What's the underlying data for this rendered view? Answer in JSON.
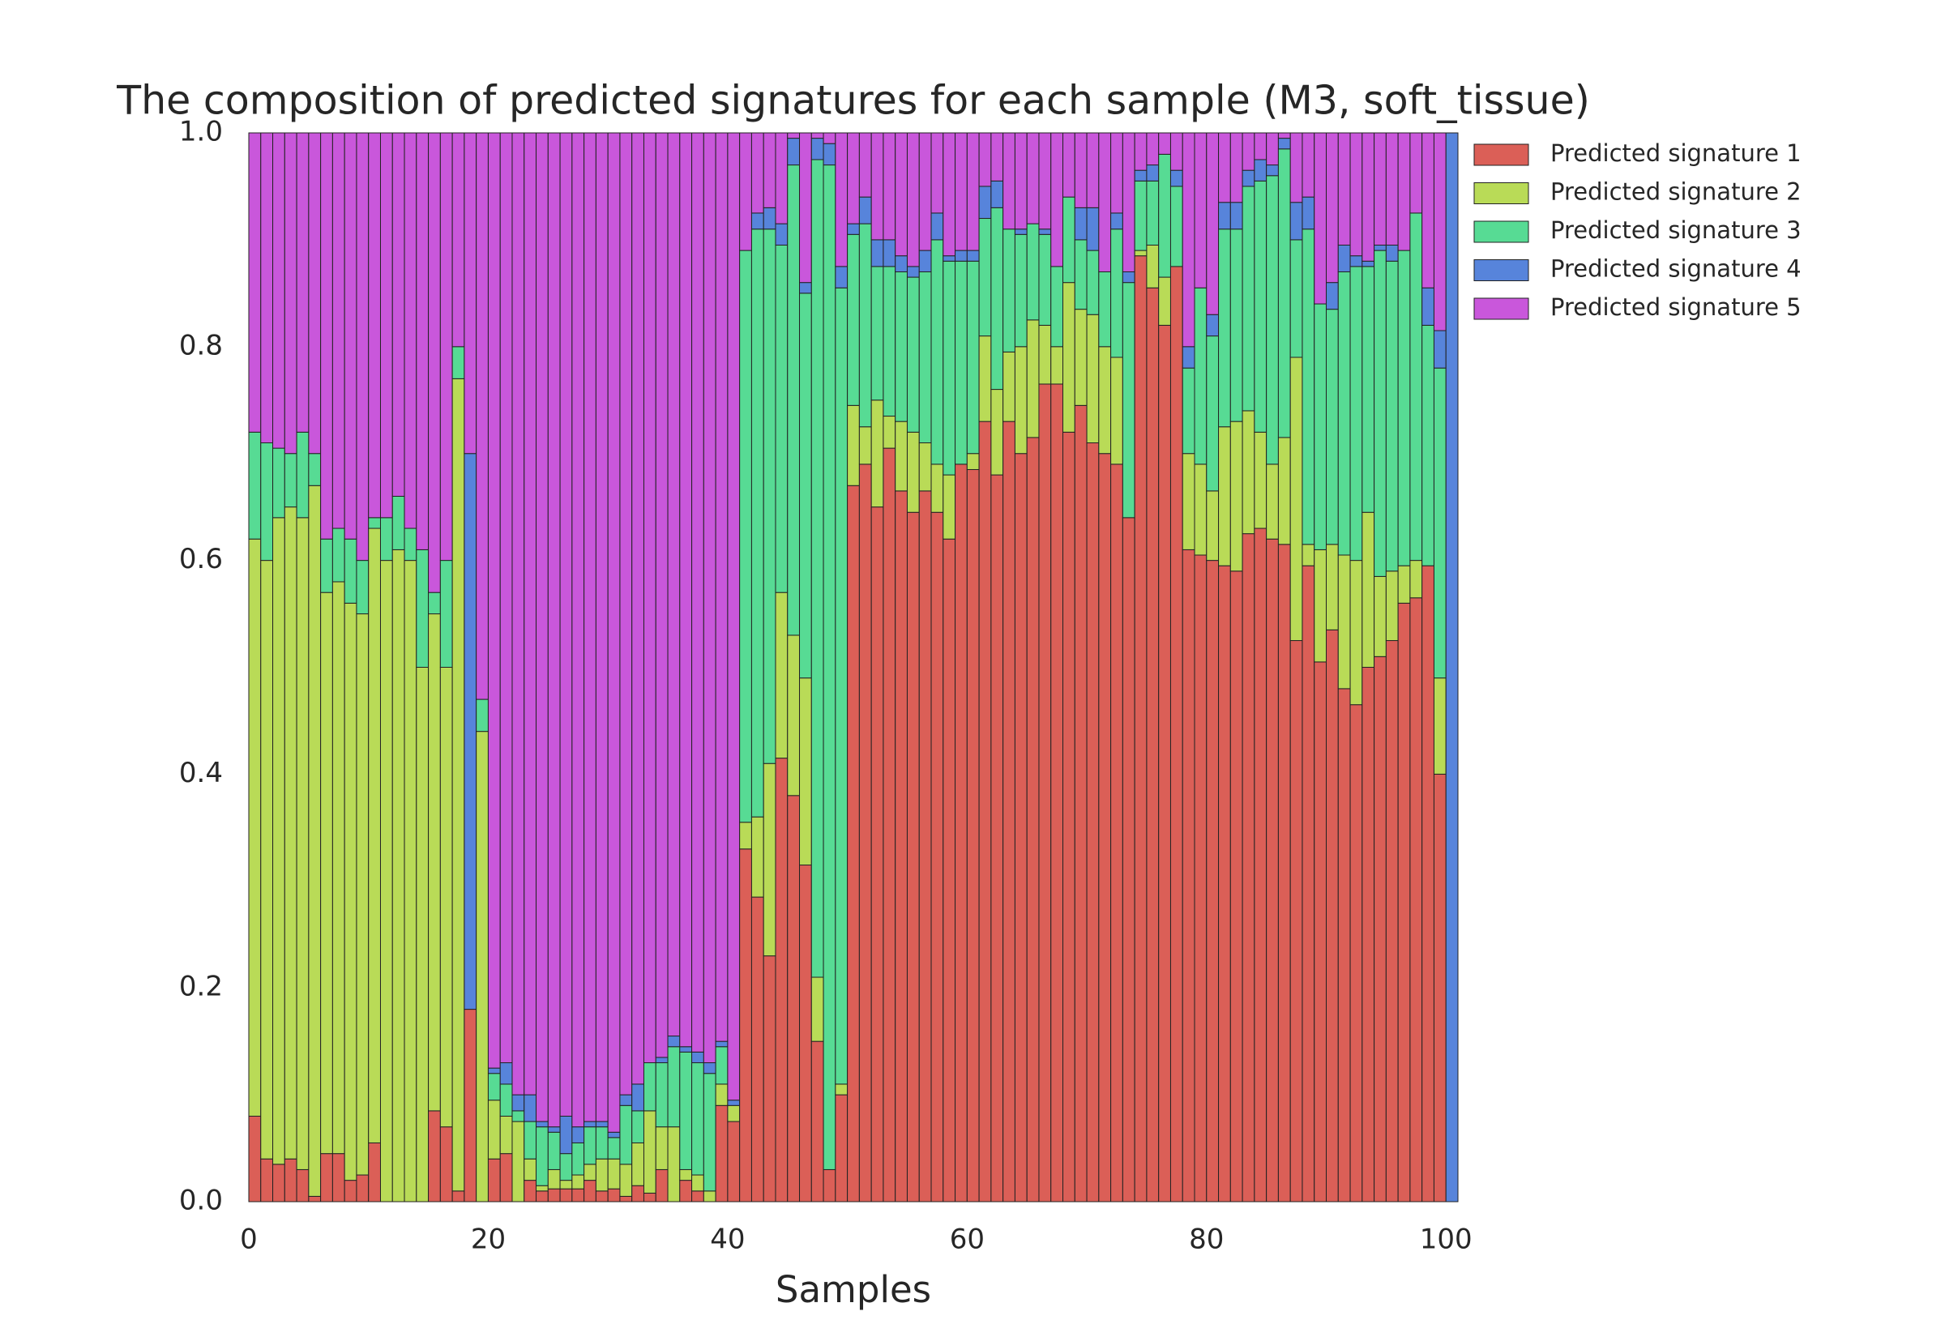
{
  "chart_data": {
    "type": "stacked_bar",
    "title": "The composition of predicted signatures for each sample (M3, soft_tissue)",
    "xlabel": "Samples",
    "x": [
      0,
      1,
      2,
      3,
      4,
      5,
      6,
      7,
      8,
      9,
      10,
      11,
      12,
      13,
      14,
      15,
      16,
      17,
      18,
      19,
      20,
      21,
      22,
      23,
      24,
      25,
      26,
      27,
      28,
      29,
      30,
      31,
      32,
      33,
      34,
      35,
      36,
      37,
      38,
      39,
      40,
      41,
      42,
      43,
      44,
      45,
      46,
      47,
      48,
      49,
      50,
      51,
      52,
      53,
      54,
      55,
      56,
      57,
      58,
      59,
      60,
      61,
      62,
      63,
      64,
      65,
      66,
      67,
      68,
      69,
      70,
      71,
      72,
      73,
      74,
      75,
      76,
      77,
      78,
      79,
      80,
      81,
      82,
      83,
      84,
      85,
      86,
      87,
      88,
      89,
      90,
      91,
      92,
      93,
      94,
      95,
      96,
      97,
      98,
      99,
      100
    ],
    "bar_width": 1,
    "xlim": [
      0,
      101
    ],
    "xticks": [
      0,
      20,
      40,
      60,
      80,
      100
    ],
    "ylim": [
      0,
      1
    ],
    "yticks": [
      {
        "value": 0,
        "label": "0.0"
      },
      0.2,
      0.4,
      0.6,
      0.8,
      {
        "value": 1,
        "label": "1.0"
      }
    ],
    "grid": false,
    "legend": "outside-right",
    "series": [
      {
        "name": "Predicted signature 1",
        "color": "#db5f57",
        "values": [
          0.08,
          0.04,
          0.035,
          0.04,
          0.03,
          0.005,
          0.045,
          0.045,
          0.02,
          0.025,
          0.055,
          0,
          0,
          0,
          0,
          0.085,
          0.07,
          0.01,
          0.18,
          0,
          0.04,
          0.045,
          0,
          0.02,
          0.01,
          0.012,
          0.012,
          0.012,
          0.02,
          0.01,
          0.012,
          0.005,
          0.015,
          0.008,
          0.03,
          0,
          0.02,
          0.01,
          0,
          0.09,
          0.075,
          0.33,
          0.285,
          0.23,
          0.415,
          0.38,
          0.315,
          0.15,
          0.03,
          0.1,
          0.67,
          0.69,
          0.65,
          0.705,
          0.665,
          0.645,
          0.665,
          0.645,
          0.62,
          0.69,
          0.685,
          0.73,
          0.68,
          0.73,
          0.7,
          0.715,
          0.765,
          0.765,
          0.72,
          0.745,
          0.71,
          0.7,
          0.69,
          0.64,
          0.885,
          0.855,
          0.82,
          0.875,
          0.61,
          0.605,
          0.6,
          0.595,
          0.59,
          0.625,
          0.63,
          0.62,
          0.615,
          0.525,
          0.595,
          0.505,
          0.535,
          0.48,
          0.465,
          0.5,
          0.51,
          0.525,
          0.56,
          0.565,
          0.595,
          0.4,
          0
        ]
      },
      {
        "name": "Predicted signature 2",
        "color": "#b9db57",
        "values": [
          0.54,
          0.56,
          0.605,
          0.61,
          0.61,
          0.665,
          0.525,
          0.535,
          0.54,
          0.525,
          0.575,
          0.6,
          0.61,
          0.6,
          0.5,
          0.465,
          0.43,
          0.76,
          0,
          0.44,
          0.055,
          0.035,
          0.075,
          0.02,
          0.005,
          0.018,
          0.008,
          0.013,
          0.015,
          0.03,
          0.028,
          0.03,
          0.04,
          0.077,
          0.04,
          0.07,
          0.01,
          0.015,
          0.01,
          0.02,
          0.015,
          0.025,
          0.075,
          0.18,
          0.155,
          0.15,
          0.175,
          0.06,
          0,
          0.01,
          0.075,
          0.035,
          0.1,
          0.03,
          0.065,
          0.075,
          0.045,
          0.045,
          0.06,
          0,
          0.015,
          0.08,
          0.08,
          0.065,
          0.1,
          0.11,
          0.055,
          0.035,
          0.14,
          0.09,
          0.12,
          0.1,
          0.1,
          0,
          0.005,
          0.04,
          0.045,
          0,
          0.09,
          0.085,
          0.065,
          0.13,
          0.14,
          0.115,
          0.09,
          0.07,
          0.1,
          0.265,
          0.02,
          0.105,
          0.08,
          0.125,
          0.135,
          0.145,
          0.075,
          0.065,
          0.035,
          0.035,
          0,
          0.09,
          0
        ]
      },
      {
        "name": "Predicted signature 3",
        "color": "#57db94",
        "values": [
          0.1,
          0.11,
          0.065,
          0.05,
          0.08,
          0.03,
          0.05,
          0.05,
          0.06,
          0.05,
          0.01,
          0.04,
          0.05,
          0.03,
          0.11,
          0.02,
          0.1,
          0.03,
          0,
          0.03,
          0.025,
          0.03,
          0.01,
          0.035,
          0.055,
          0.035,
          0.025,
          0.03,
          0.035,
          0.03,
          0.02,
          0.055,
          0.03,
          0.045,
          0.06,
          0.075,
          0.11,
          0.105,
          0.11,
          0.035,
          0,
          0.535,
          0.55,
          0.5,
          0.325,
          0.44,
          0.36,
          0.765,
          0.94,
          0.745,
          0.16,
          0.19,
          0.125,
          0.14,
          0.14,
          0.145,
          0.16,
          0.21,
          0.2,
          0.19,
          0.18,
          0.11,
          0.17,
          0.115,
          0.105,
          0.09,
          0.085,
          0.075,
          0.08,
          0.065,
          0.06,
          0.07,
          0.12,
          0.22,
          0.065,
          0.06,
          0.115,
          0.075,
          0.08,
          0.165,
          0.145,
          0.185,
          0.18,
          0.21,
          0.235,
          0.27,
          0.27,
          0.11,
          0.295,
          0.23,
          0.22,
          0.265,
          0.275,
          0.23,
          0.305,
          0.29,
          0.295,
          0.325,
          0.225,
          0.29,
          0
        ]
      },
      {
        "name": "Predicted signature 4",
        "color": "#5784db",
        "values": [
          0,
          0,
          0,
          0,
          0,
          0,
          0,
          0,
          0,
          0,
          0,
          0,
          0,
          0,
          0,
          0,
          0,
          0,
          0.52,
          0,
          0.005,
          0.02,
          0.015,
          0.025,
          0.005,
          0.005,
          0.035,
          0.015,
          0.005,
          0.005,
          0.005,
          0.01,
          0.025,
          0,
          0.005,
          0.01,
          0.005,
          0.01,
          0.01,
          0.005,
          0.005,
          0,
          0.015,
          0.02,
          0.02,
          0.025,
          0.01,
          0.02,
          0.02,
          0.02,
          0.01,
          0.025,
          0.025,
          0.025,
          0.015,
          0.01,
          0.02,
          0.025,
          0.005,
          0.01,
          0.01,
          0.03,
          0.025,
          0,
          0.005,
          0,
          0.005,
          0,
          0,
          0.03,
          0.04,
          0,
          0.015,
          0.01,
          0.01,
          0.015,
          0,
          0.015,
          0.02,
          0,
          0.02,
          0.025,
          0.025,
          0.015,
          0.02,
          0.01,
          0.01,
          0.035,
          0.03,
          0,
          0.025,
          0.025,
          0.01,
          0.005,
          0.005,
          0.015,
          0,
          0,
          0.035,
          0.035,
          1
        ]
      },
      {
        "name": "Predicted signature 5",
        "color": "#c957db",
        "values": [
          0.28,
          0.29,
          0.295,
          0.3,
          0.28,
          0.3,
          0.38,
          0.37,
          0.38,
          0.4,
          0.36,
          0.36,
          0.34,
          0.37,
          0.39,
          0.43,
          0.4,
          0.2,
          0.3,
          0.53,
          0.875,
          0.87,
          0.9,
          0.9,
          0.925,
          0.93,
          0.92,
          0.93,
          0.925,
          0.925,
          0.935,
          0.9,
          0.89,
          0.87,
          0.865,
          0.845,
          0.855,
          0.86,
          0.87,
          0.85,
          0.905,
          0.11,
          0.075,
          0.07,
          0.085,
          0.005,
          0.14,
          0.005,
          0.01,
          0.125,
          0.085,
          0.06,
          0.1,
          0.1,
          0.115,
          0.125,
          0.11,
          0.075,
          0.115,
          0.11,
          0.11,
          0.05,
          0.045,
          0.09,
          0.09,
          0.085,
          0.09,
          0.125,
          0.06,
          0.07,
          0.07,
          0.13,
          0.075,
          0.13,
          0.035,
          0.03,
          0.02,
          0.035,
          0.2,
          0.145,
          0.17,
          0.065,
          0.065,
          0.035,
          0.025,
          0.03,
          0.005,
          0.065,
          0.06,
          0.16,
          0.14,
          0.105,
          0.115,
          0.12,
          0.105,
          0.105,
          0.11,
          0.075,
          0.145,
          0.185,
          0
        ]
      }
    ]
  }
}
